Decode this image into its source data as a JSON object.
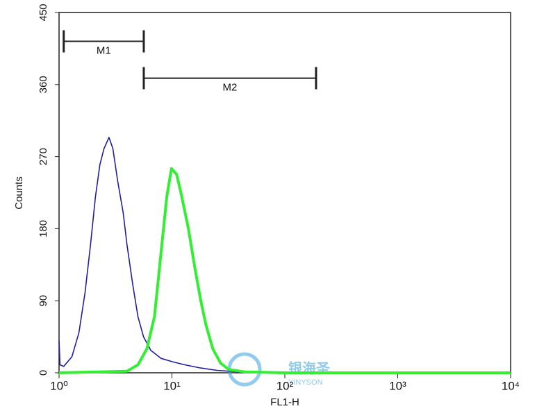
{
  "chart_data": {
    "type": "line",
    "xlabel": "FL1-H",
    "ylabel": "Counts",
    "xscale": "log",
    "xlim": [
      1,
      10000
    ],
    "xticks": [
      {
        "value": 1,
        "label": "10⁰"
      },
      {
        "value": 10,
        "label": "10¹"
      },
      {
        "value": 100,
        "label": "10²"
      },
      {
        "value": 1000,
        "label": "10³"
      },
      {
        "value": 10000,
        "label": "10⁴"
      }
    ],
    "ylim": [
      0,
      450
    ],
    "yticks": [
      0,
      90,
      180,
      270,
      360,
      450
    ],
    "series": [
      {
        "color": "#1f1f9e",
        "x": [
          1.0,
          1.02,
          1.1,
          1.3,
          1.5,
          1.7,
          1.9,
          2.1,
          2.3,
          2.5,
          2.77,
          3.0,
          3.3,
          3.7,
          4.0,
          4.5,
          5.0,
          5.6,
          6.5,
          8,
          10,
          13,
          18,
          25,
          40,
          100,
          10000
        ],
        "values": [
          40,
          10,
          8,
          20,
          50,
          100,
          160,
          220,
          260,
          280,
          294,
          280,
          240,
          200,
          160,
          110,
          70,
          45,
          28,
          18,
          14,
          10,
          6,
          3,
          1,
          0,
          0
        ]
      },
      {
        "color": "#33ee33",
        "x": [
          1.0,
          4,
          5,
          6,
          7,
          8,
          9,
          9.9,
          11,
          12,
          14,
          16,
          18,
          20,
          23,
          27,
          32,
          45,
          100,
          10000
        ],
        "values": [
          0,
          2,
          10,
          30,
          70,
          150,
          220,
          255,
          248,
          225,
          180,
          130,
          90,
          60,
          30,
          12,
          4,
          1,
          0,
          0
        ]
      }
    ],
    "markers": [
      {
        "label": "M1",
        "x": [
          1.1,
          5.63
        ],
        "y": 414
      },
      {
        "label": "M2",
        "x": [
          5.63,
          189
        ],
        "y": 368
      }
    ],
    "watermark": {
      "text": "银海圣",
      "subtext": "YINYSON"
    }
  }
}
